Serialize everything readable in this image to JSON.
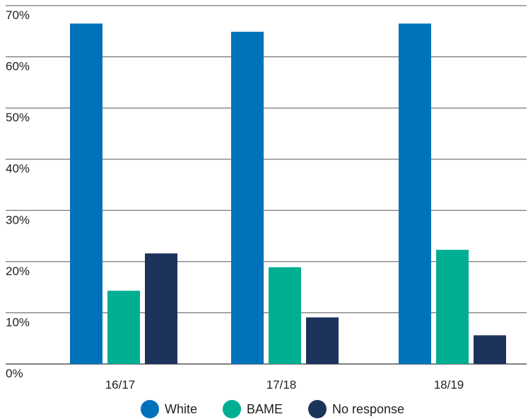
{
  "chart_data": {
    "type": "bar",
    "title": "",
    "xlabel": "",
    "ylabel": "",
    "ylim": [
      0,
      70
    ],
    "y_ticks": [
      "0%",
      "10%",
      "20%",
      "30%",
      "40%",
      "50%",
      "60%",
      "70%"
    ],
    "y_tick_values": [
      0,
      10,
      20,
      30,
      40,
      50,
      60,
      70
    ],
    "grid": true,
    "legend_position": "bottom",
    "categories": [
      "16/17",
      "17/18",
      "18/19"
    ],
    "series": [
      {
        "name": "White",
        "color": "#0072bc",
        "values": [
          66.5,
          64.9,
          66.5
        ]
      },
      {
        "name": "BAME",
        "color": "#00ae92",
        "values": [
          14.3,
          18.9,
          22.3
        ]
      },
      {
        "name": "No response",
        "color": "#1c335c",
        "values": [
          21.6,
          9.1,
          5.6
        ]
      }
    ]
  }
}
